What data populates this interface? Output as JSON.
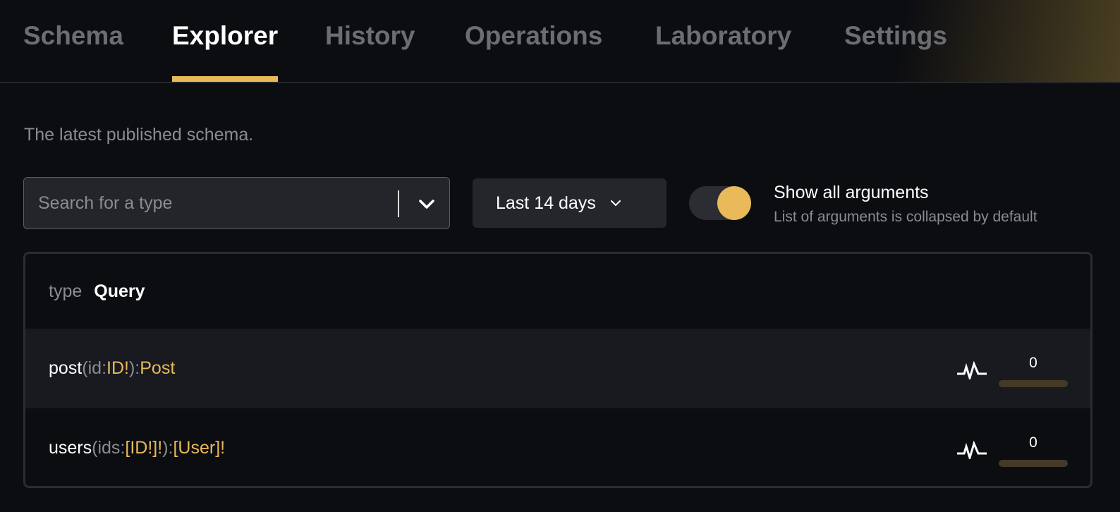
{
  "tabs": [
    {
      "label": "Schema"
    },
    {
      "label": "Explorer",
      "active": true
    },
    {
      "label": "History"
    },
    {
      "label": "Operations"
    },
    {
      "label": "Laboratory"
    },
    {
      "label": "Settings"
    }
  ],
  "description": "The latest published schema.",
  "search": {
    "placeholder": "Search for a type",
    "value": ""
  },
  "date_range": {
    "selected": "Last 14 days"
  },
  "show_args": {
    "label": "Show all arguments",
    "sublabel": "List of arguments is collapsed by default",
    "enabled": true
  },
  "type_panel": {
    "keyword": "type",
    "name": "Query",
    "fields": [
      {
        "name": "post",
        "open": " (",
        "arg": "id",
        "colon": ": ",
        "arg_type": "ID!",
        "close": "): ",
        "return_type": "Post",
        "count": "0",
        "usage_fraction": 0
      },
      {
        "name": "users",
        "open": " (",
        "arg": "ids",
        "colon": ": ",
        "arg_type": "[ID!]!",
        "close": "): ",
        "return_type": "[User]!",
        "count": "0",
        "usage_fraction": 0
      }
    ]
  },
  "colors": {
    "accent": "#e9b95a",
    "background": "#0c0d11"
  }
}
